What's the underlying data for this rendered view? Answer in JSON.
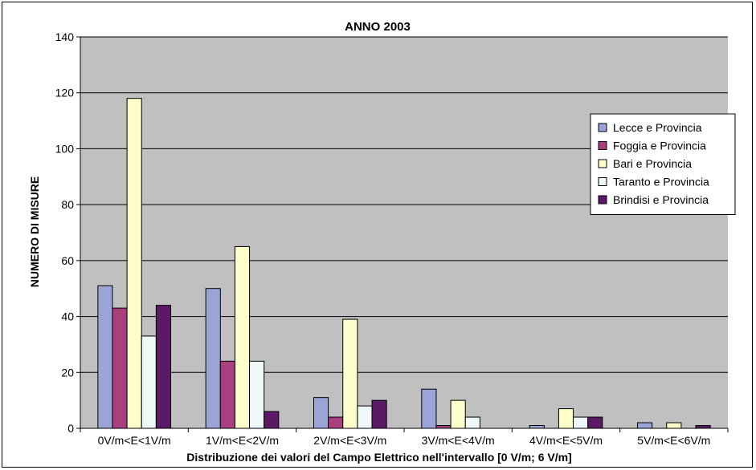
{
  "chart_data": {
    "type": "bar",
    "title": "ANNO 2003",
    "xlabel": "Distribuzione dei valori del Campo Elettrico nell'intervallo [0 V/m; 6 V/m]",
    "ylabel": "NUMERO DI MISURE",
    "ylim": [
      0,
      140
    ],
    "yticks": [
      "0",
      "20",
      "40",
      "60",
      "80",
      "100",
      "120",
      "140"
    ],
    "grid": true,
    "legend_position": "right",
    "categories": [
      "0V/m<E<1V/m",
      "1V/m<E<2V/m",
      "2V/m<E<3V/m",
      "3V/m<E<4V/m",
      "4V/m<E<5V/m",
      "5V/m<E<6V/m"
    ],
    "series": [
      {
        "name": "Lecce e Provincia",
        "color": "#9AA4D6",
        "values": [
          51,
          50,
          11,
          14,
          1,
          2
        ]
      },
      {
        "name": "Foggia e Provincia",
        "color": "#A8407E",
        "values": [
          43,
          24,
          4,
          1,
          0,
          0
        ]
      },
      {
        "name": "Bari e Provincia",
        "color": "#FFFFCC",
        "values": [
          118,
          65,
          39,
          10,
          7,
          2
        ]
      },
      {
        "name": "Taranto e Provincia",
        "color": "#EEF8F8",
        "values": [
          33,
          24,
          8,
          4,
          4,
          0
        ]
      },
      {
        "name": "Brindisi e Provincia",
        "color": "#5A1A66",
        "values": [
          44,
          6,
          10,
          0,
          4,
          1
        ]
      }
    ],
    "plot_background": "#C0C0C0"
  }
}
